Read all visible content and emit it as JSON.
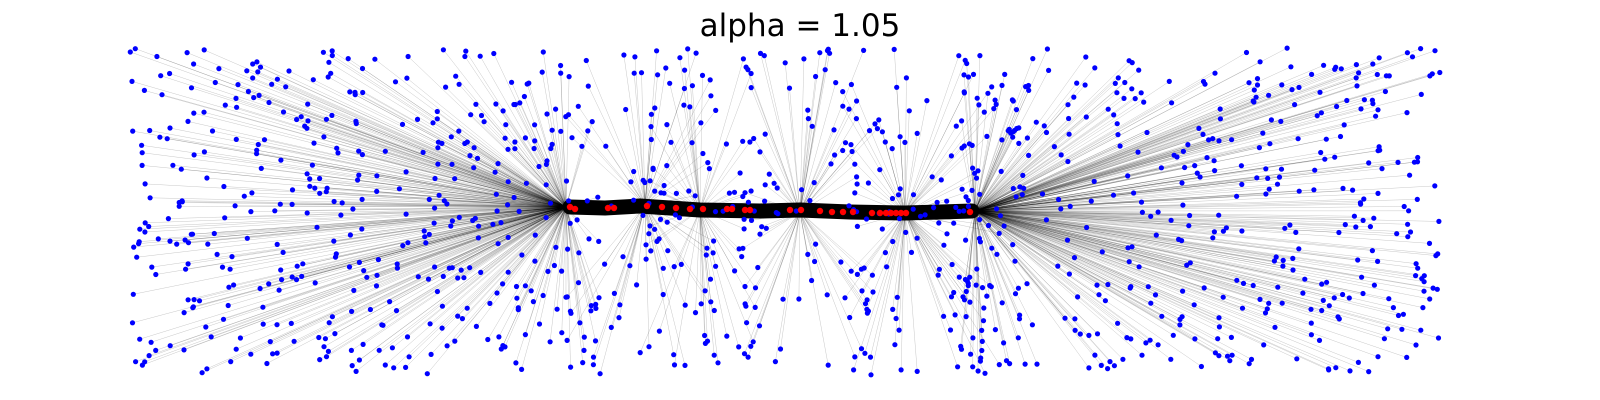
{
  "title": "alpha = 1.05",
  "colors": {
    "background": "#ffffff",
    "edge": "#000000",
    "backbone": "#000000",
    "peripheral_node": "#0000ff",
    "backbone_node": "#ff0000"
  }
}
